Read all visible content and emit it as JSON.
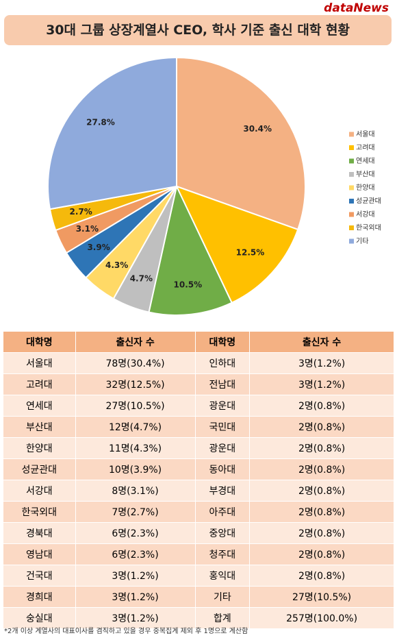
{
  "logo": "dataNews",
  "chart_data": {
    "type": "pie",
    "title": "30대 그룹 상장계열사 CEO, 학사 기준 출신 대학 현황",
    "categories": [
      "서울대",
      "고려대",
      "연세대",
      "부산대",
      "한양대",
      "성균관대",
      "서강대",
      "한국외대",
      "기타"
    ],
    "values": [
      30.4,
      12.5,
      10.5,
      4.7,
      4.3,
      3.9,
      3.1,
      2.7,
      27.8
    ],
    "value_labels": [
      "30.4%",
      "12.5%",
      "10.5%",
      "4.7%",
      "4.3%",
      "3.9%",
      "3.1%",
      "2.7%",
      "27.8%"
    ],
    "colors": [
      "#f4b183",
      "#ffc000",
      "#70ad47",
      "#bfbfbf",
      "#ffd966",
      "#2e75b6",
      "#f09a62",
      "#f5b90c",
      "#8faadc"
    ],
    "legend": "right"
  },
  "table": {
    "header": [
      "대학명",
      "출신자 수",
      "대학명",
      "출신자 수"
    ],
    "rows": [
      [
        "서울대",
        "78명(30.4%)",
        "인하대",
        "3명(1.2%)"
      ],
      [
        "고려대",
        "32명(12.5%)",
        "전남대",
        "3명(1.2%)"
      ],
      [
        "연세대",
        "27명(10.5%)",
        "광운대",
        "2명(0.8%)"
      ],
      [
        "부산대",
        "12명(4.7%)",
        "국민대",
        "2명(0.8%)"
      ],
      [
        "한양대",
        "11명(4.3%)",
        "광운대",
        "2명(0.8%)"
      ],
      [
        "성균관대",
        "10명(3.9%)",
        "동아대",
        "2명(0.8%)"
      ],
      [
        "서강대",
        "8명(3.1%)",
        "부경대",
        "2명(0.8%)"
      ],
      [
        "한국외대",
        "7명(2.7%)",
        "아주대",
        "2명(0.8%)"
      ],
      [
        "경북대",
        "6명(2.3%)",
        "중앙대",
        "2명(0.8%)"
      ],
      [
        "영남대",
        "6명(2.3%)",
        "청주대",
        "2명(0.8%)"
      ],
      [
        "건국대",
        "3명(1.2%)",
        "홍익대",
        "2명(0.8%)"
      ],
      [
        "경희대",
        "3명(1.2%)",
        "기타",
        "27명(10.5%)"
      ],
      [
        "숭실대",
        "3명(1.2%)",
        "합계",
        "257명(100.0%)"
      ]
    ]
  },
  "footnote": "*2개 이상 계열사의 대표이사를 겸직하고 있을 경우 중복집계 제외 후 1명으로 계산함"
}
